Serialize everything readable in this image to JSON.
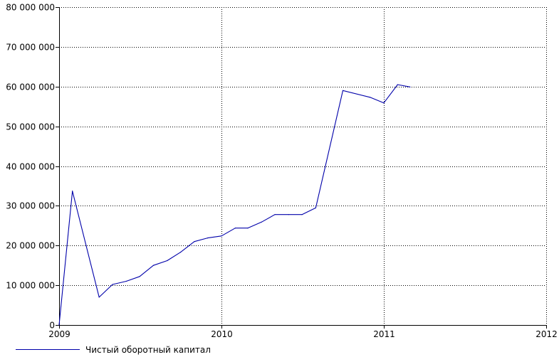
{
  "chart_data": {
    "type": "line",
    "x_axis": {
      "type": "date",
      "min": "2009-01-01",
      "max": "2012-01-01",
      "tick_labels": [
        "2009",
        "2010",
        "2011",
        "2012"
      ]
    },
    "y_axis": {
      "min": 0,
      "max": 80000000,
      "tick_labels": [
        "0",
        "10 000 000",
        "20 000 000",
        "30 000 000",
        "40 000 000",
        "50 000 000",
        "60 000 000",
        "70 000 000",
        "80 000 000"
      ]
    },
    "grid": true,
    "legend_position": "bottom-left",
    "series": [
      {
        "name": "Чистый оборотный капитал",
        "color": "#0000aa",
        "points": [
          {
            "x": "2009-01-01",
            "y": 0
          },
          {
            "x": "2009-01-31",
            "y": 33700000
          },
          {
            "x": "2009-04-01",
            "y": 7000000
          },
          {
            "x": "2009-05-01",
            "y": 10200000
          },
          {
            "x": "2009-06-01",
            "y": 11000000
          },
          {
            "x": "2009-07-01",
            "y": 12200000
          },
          {
            "x": "2009-08-01",
            "y": 15000000
          },
          {
            "x": "2009-09-01",
            "y": 16200000
          },
          {
            "x": "2009-10-01",
            "y": 18300000
          },
          {
            "x": "2009-11-01",
            "y": 21000000
          },
          {
            "x": "2009-12-01",
            "y": 21900000
          },
          {
            "x": "2010-01-01",
            "y": 22400000
          },
          {
            "x": "2010-02-01",
            "y": 24400000
          },
          {
            "x": "2010-03-01",
            "y": 24400000
          },
          {
            "x": "2010-04-01",
            "y": 25900000
          },
          {
            "x": "2010-05-01",
            "y": 27800000
          },
          {
            "x": "2010-06-01",
            "y": 27800000
          },
          {
            "x": "2010-07-01",
            "y": 27800000
          },
          {
            "x": "2010-08-01",
            "y": 29500000
          },
          {
            "x": "2010-10-01",
            "y": 59000000
          },
          {
            "x": "2010-12-01",
            "y": 57300000
          },
          {
            "x": "2011-01-01",
            "y": 55900000
          },
          {
            "x": "2011-02-01",
            "y": 60500000
          },
          {
            "x": "2011-03-01",
            "y": 59900000
          }
        ]
      }
    ]
  }
}
